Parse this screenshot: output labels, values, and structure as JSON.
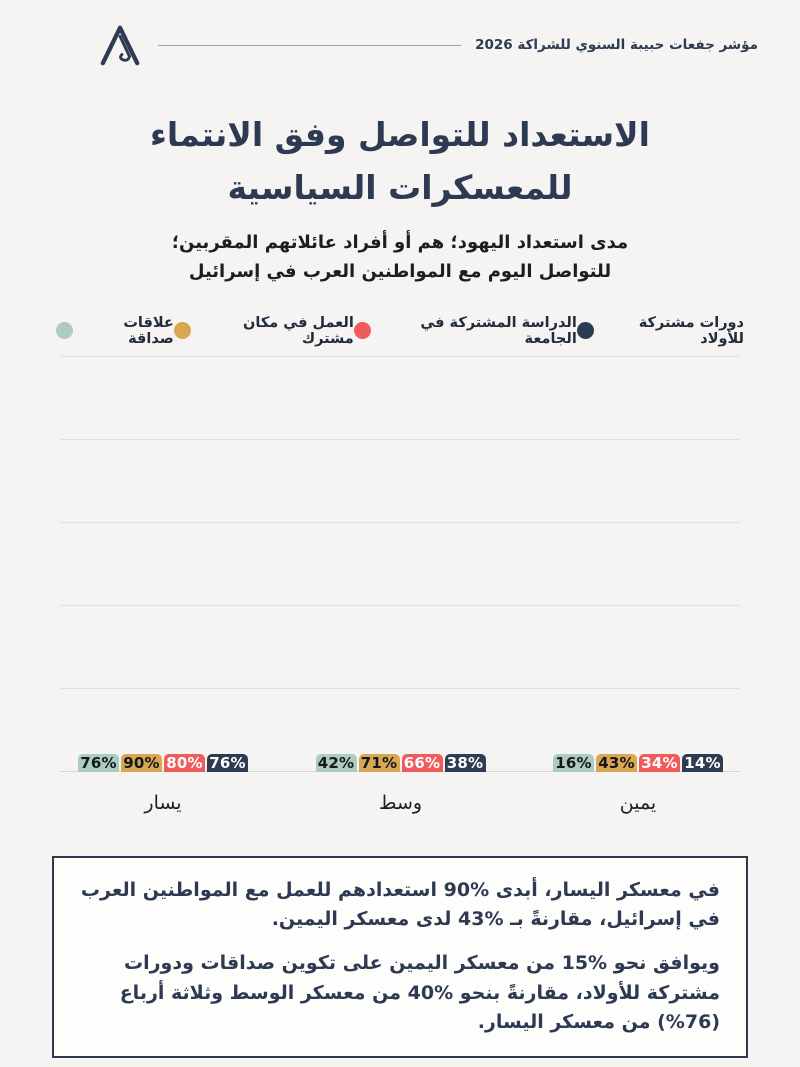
{
  "header": {
    "brand": "مؤشر جفعات حبيبة السنوي للشراكة 2026"
  },
  "title": {
    "line1": "الاستعداد للتواصل وفق الانتماء",
    "line2": "للمعسكرات السياسية"
  },
  "subtitle": {
    "text": "مدى استعداد اليهود؛ هم أو أفراد عائلاتهم المقربين؛ للتواصل اليوم مع المواطنين العرب في إسرائيل"
  },
  "chart_data": {
    "type": "bar",
    "categories": [
      "يسار",
      "وسط",
      "يمين"
    ],
    "series": [
      {
        "name": "علاقات صداقة",
        "color": "#accbc1",
        "text_color": "#15181c",
        "values": [
          76,
          42,
          16
        ]
      },
      {
        "name": "العمل في مكان مشترك",
        "color": "#d8a751",
        "text_color": "#15181c",
        "values": [
          90,
          71,
          43
        ]
      },
      {
        "name": "الدراسة المشتركة في الجامعة",
        "color": "#f05c5e",
        "text_color": "#ffffff",
        "values": [
          80,
          66,
          34
        ]
      },
      {
        "name": "دورات مشتركة للأولاد",
        "color": "#2e3c53",
        "text_color": "#ffffff",
        "values": [
          76,
          38,
          14
        ]
      }
    ],
    "value_suffix": "%",
    "ylim": [
      0,
      100
    ],
    "grid_step": 20,
    "grid": true,
    "legend_position": "top",
    "value_labels": "inside-center",
    "title": "الاستعداد للتواصل وفق الانتماء للمعسكرات السياسية"
  },
  "summary": {
    "p1": "في معسكر اليسار، أبدى %90 استعدادهم للعمل مع المواطنين العرب في إسرائيل، مقارنةً بـ %43 لدى معسكر اليمين.",
    "p2": "ويوافق نحو %15 من معسكر اليمين على تكوين صداقات ودورات مشتركة للأولاد، مقارنةً بنحو %40 من معسكر الوسط وثلاثة أرباع (76%) من معسكر اليسار."
  },
  "theme": {
    "navy": "#2e3a52",
    "page_bg": "#f5f4f2",
    "box_bg": "#fdfdfc",
    "gridline": "#e2e1dd"
  }
}
